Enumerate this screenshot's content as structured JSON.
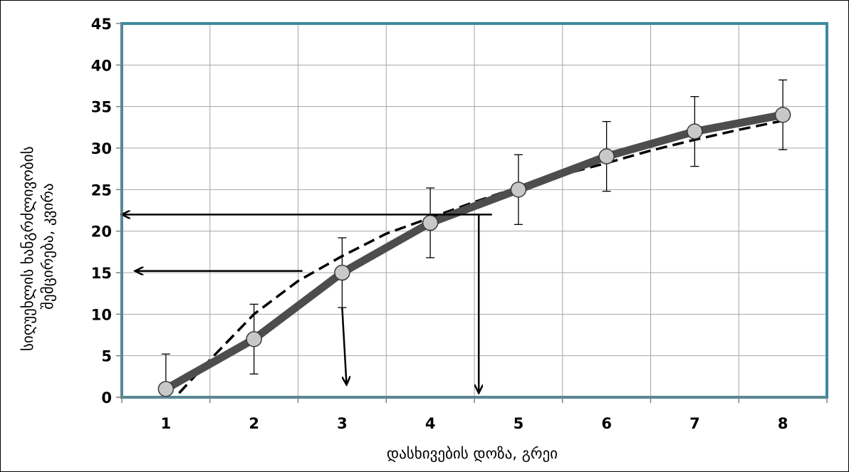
{
  "chart_data": {
    "type": "line",
    "xlabel": "დასხივების დოზა, გრეი",
    "ylabel": [
      "სიღუეხლის ხანგრძლივობის",
      "შემცირება, კვირა"
    ],
    "xlim": [
      0.5,
      8.5
    ],
    "ylim": [
      0,
      45
    ],
    "x_ticks": [
      1,
      2,
      3,
      4,
      5,
      6,
      7,
      8
    ],
    "y_ticks": [
      0,
      5,
      10,
      15,
      20,
      25,
      30,
      35,
      40,
      45
    ],
    "grid": true,
    "colors": {
      "frame": "#3E8A9E",
      "grid": "#A6A6A6",
      "line": "#4D4D4D",
      "marker": "#C8C8C8",
      "trend": "#000000"
    },
    "series": [
      {
        "style": "solid-with-markers-and-error-bars",
        "x": [
          1,
          2,
          3,
          4,
          5,
          6,
          7,
          8
        ],
        "y": [
          1,
          7,
          15,
          21,
          25,
          29,
          32,
          34
        ],
        "error": [
          4.2,
          4.2,
          4.2,
          4.2,
          4.2,
          4.2,
          4.2,
          4.2
        ]
      },
      {
        "style": "dashed-trend",
        "x": [
          1.15,
          1.5,
          2,
          2.5,
          3,
          3.5,
          4,
          4.5,
          5,
          5.5,
          6,
          6.5,
          7,
          7.5,
          8
        ],
        "y": [
          0.5,
          4.5,
          10,
          14,
          17,
          19.7,
          21.6,
          23.5,
          25.3,
          26.8,
          28.2,
          29.7,
          31,
          32.2,
          33.3
        ]
      }
    ],
    "annotations": [
      {
        "kind": "arrow",
        "from": [
          4.7,
          22
        ],
        "to": [
          0.5,
          22
        ]
      },
      {
        "kind": "arrow",
        "from": [
          4.55,
          22
        ],
        "to": [
          4.55,
          0.5
        ]
      },
      {
        "kind": "arrow",
        "from": [
          2.55,
          15.2
        ],
        "to": [
          0.65,
          15.2
        ]
      },
      {
        "kind": "arrow",
        "from": [
          3.0,
          10.8
        ],
        "to": [
          3.05,
          1.5
        ]
      }
    ]
  }
}
